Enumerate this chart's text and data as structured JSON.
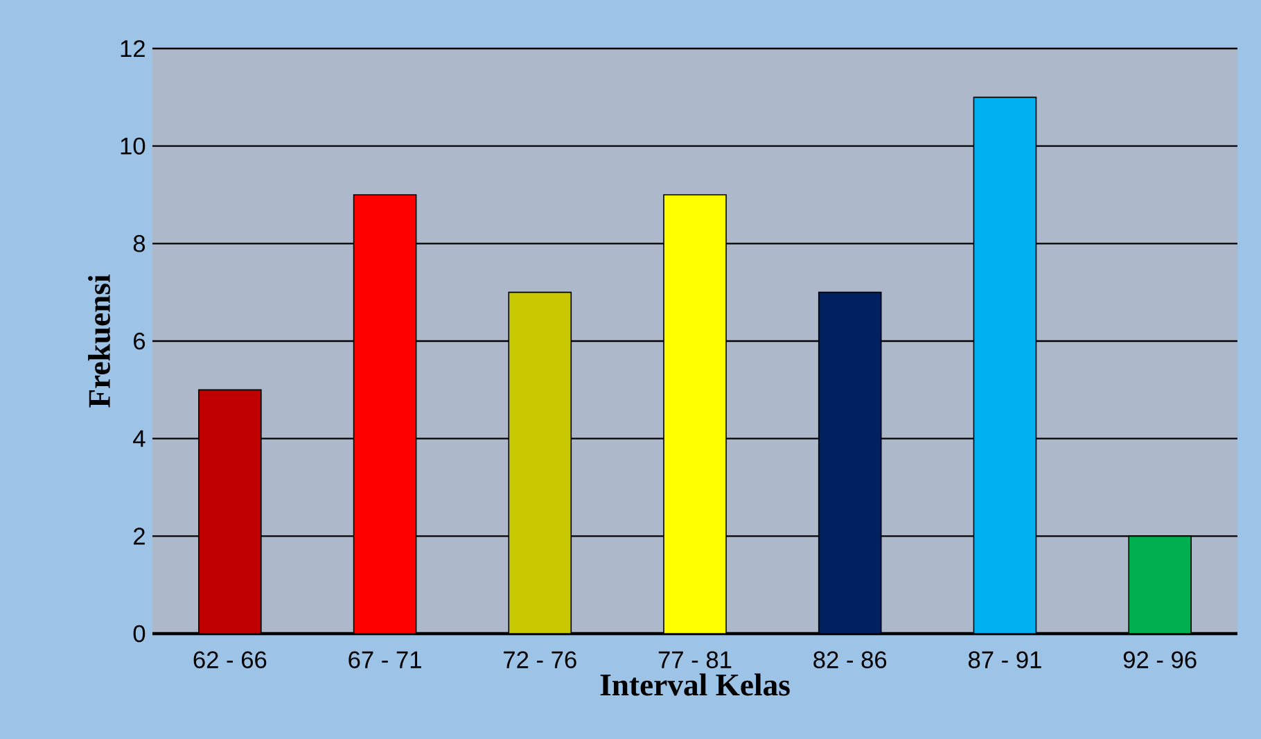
{
  "chart_data": {
    "type": "bar",
    "xlabel": "Interval Kelas",
    "ylabel": "Frekuensi",
    "categories": [
      "62 - 66",
      "67 - 71",
      "72 - 76",
      "77 - 81",
      "82 - 86",
      "87 - 91",
      "92 - 96"
    ],
    "values": [
      5,
      9,
      7,
      9,
      7,
      11,
      2
    ],
    "colors": [
      "#c00000",
      "#ff0000",
      "#c8c800",
      "#ffff00",
      "#002060",
      "#00b0f0",
      "#00b050"
    ],
    "ylim": [
      0,
      12
    ],
    "yticks": [
      0,
      2,
      4,
      6,
      8,
      10,
      12
    ],
    "grid": "y"
  }
}
